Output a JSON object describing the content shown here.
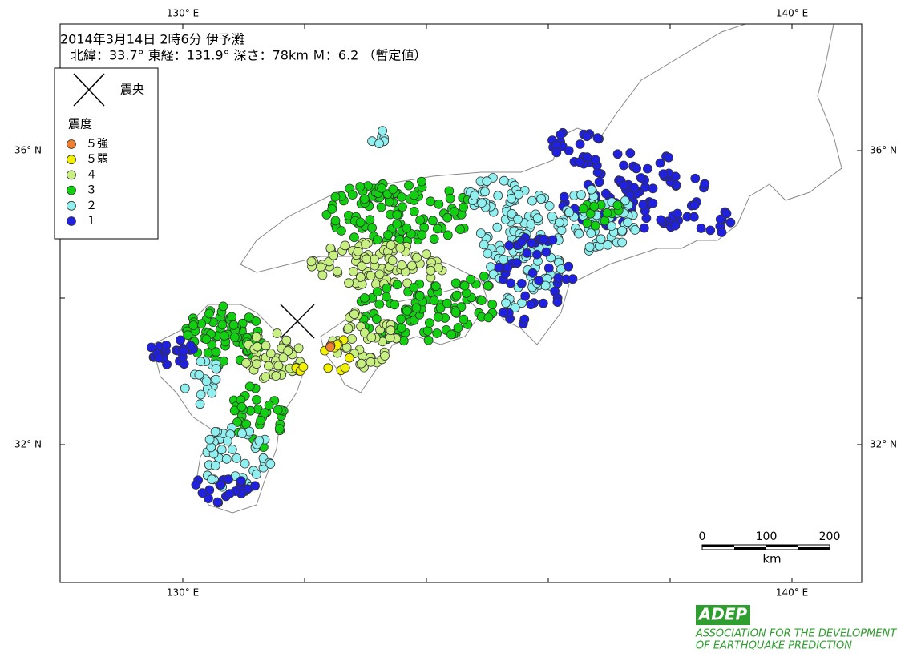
{
  "header": {
    "line1": "2014年3月14日 2時6分  伊予灘",
    "line2": "北緯：33.7°  東経：131.9°  深さ：78km  Ｍ：6.2  （暫定値）"
  },
  "legend": {
    "epicenter": "震央",
    "title": "震度",
    "items": [
      {
        "label": "５強",
        "color": "#f08030"
      },
      {
        "label": "５弱",
        "color": "#f0f000"
      },
      {
        "label": "４",
        "color": "#c8f080"
      },
      {
        "label": "３",
        "color": "#10d010"
      },
      {
        "label": "２",
        "color": "#90f0f0"
      },
      {
        "label": "１",
        "color": "#2020e0"
      }
    ]
  },
  "axes": {
    "top": [
      "130°  E",
      "140°  E"
    ],
    "bottom": [
      "130°  E",
      "140°  E"
    ],
    "left": [
      "36°  N",
      "32°  N"
    ],
    "right": [
      "36°  N",
      "32°  N"
    ]
  },
  "scale": {
    "ticks": [
      "0",
      "100",
      "200"
    ],
    "unit": "km"
  },
  "logo": {
    "mark": "ADEP",
    "line1": "ASSOCIATION  FOR THE DEVELOPMENT",
    "line2": "OF EARTHQUAKE PREDICTION"
  }
}
